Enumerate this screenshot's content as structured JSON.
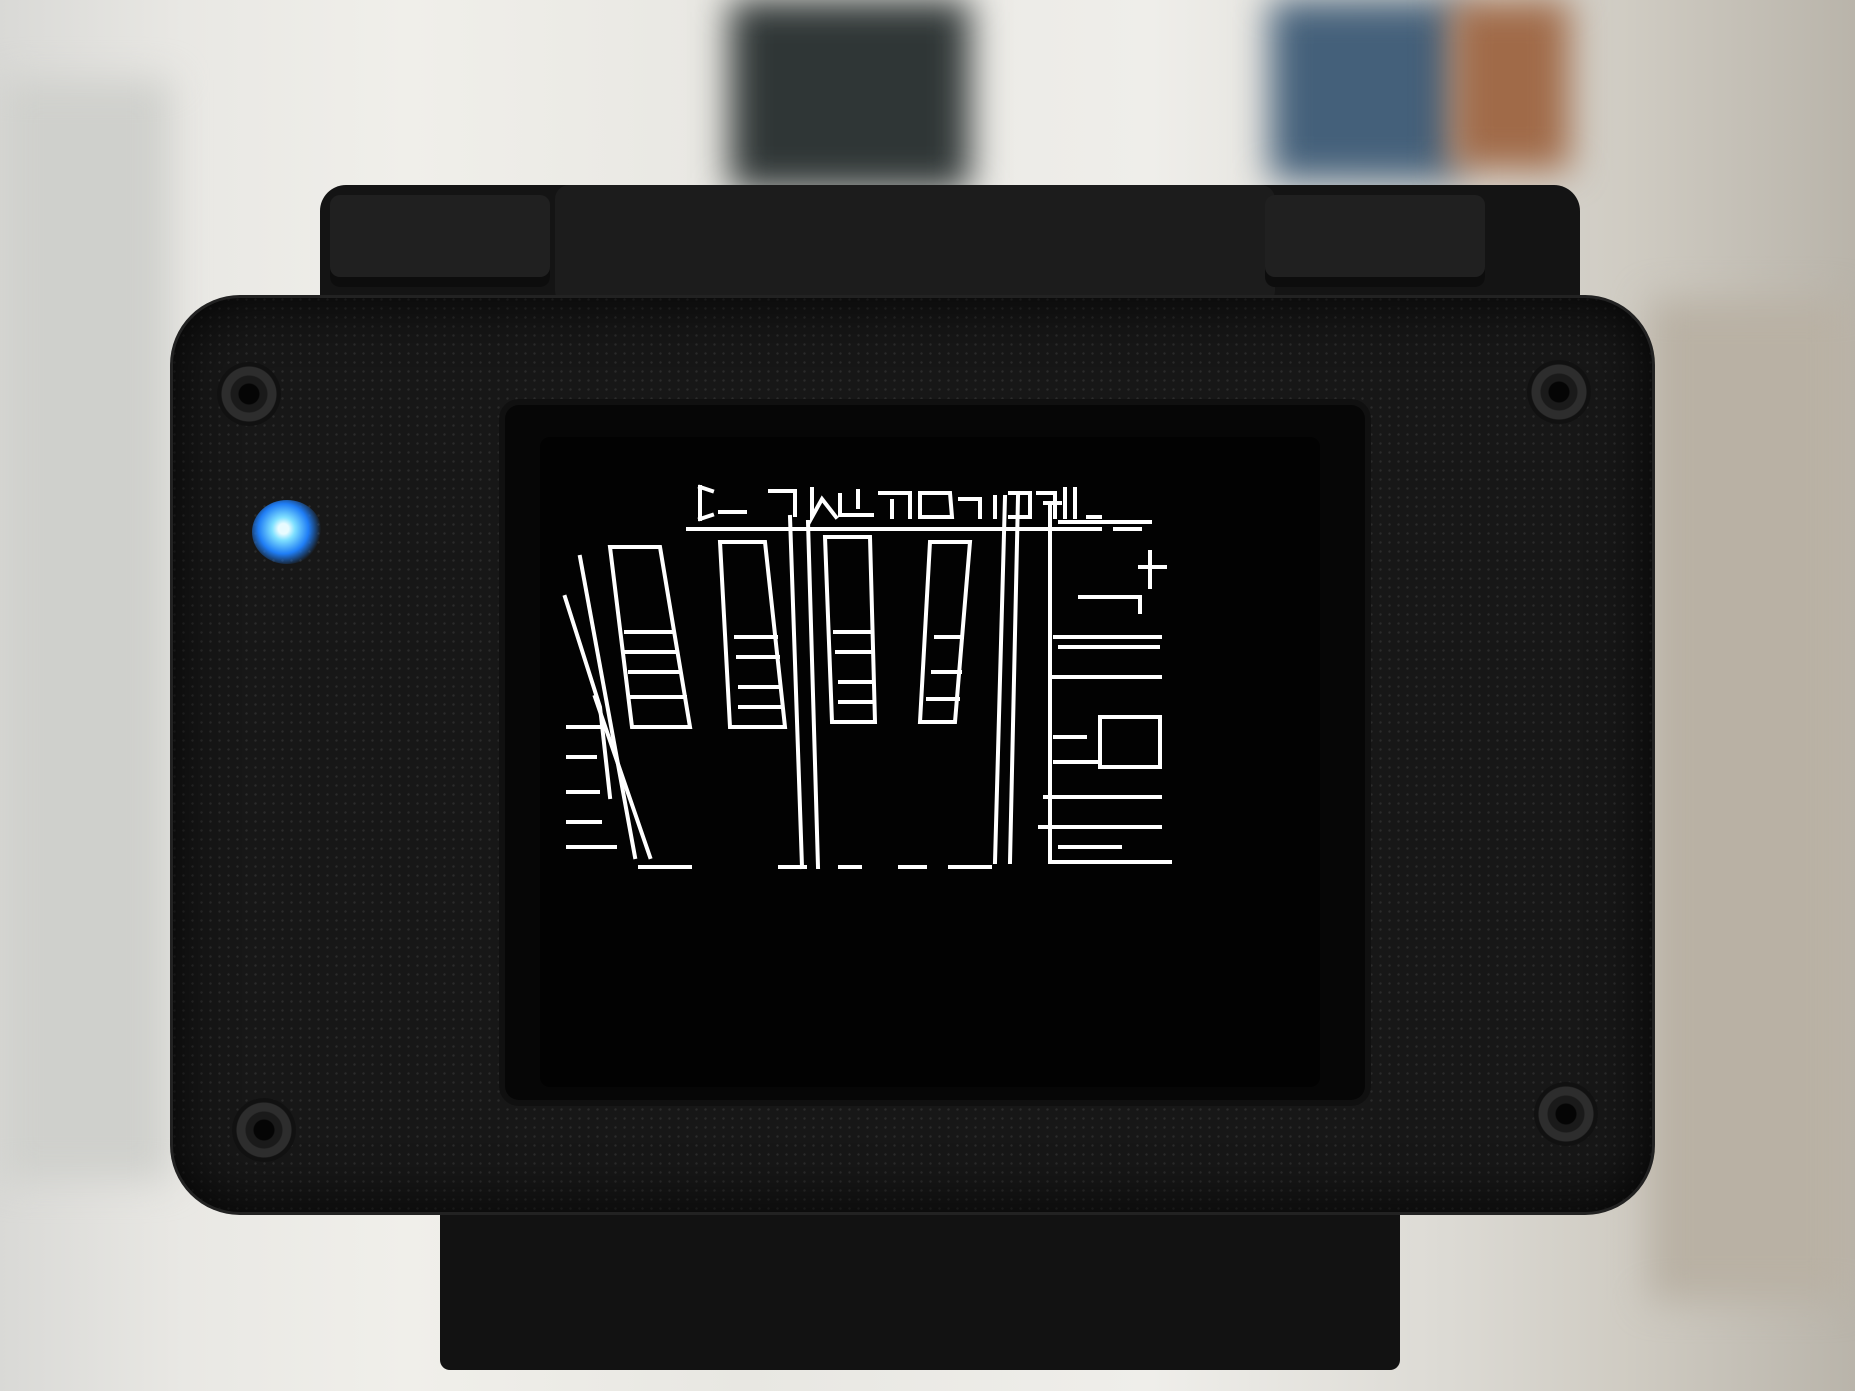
{
  "scene": {
    "subject": "camera-device-with-oled-display",
    "led_color": "#2f8cff",
    "case_color": "#171717",
    "display_color": "#ffffff"
  },
  "display": {
    "mode": "edge-detection",
    "header_text": "",
    "status_icon": "battery-level-icon"
  }
}
